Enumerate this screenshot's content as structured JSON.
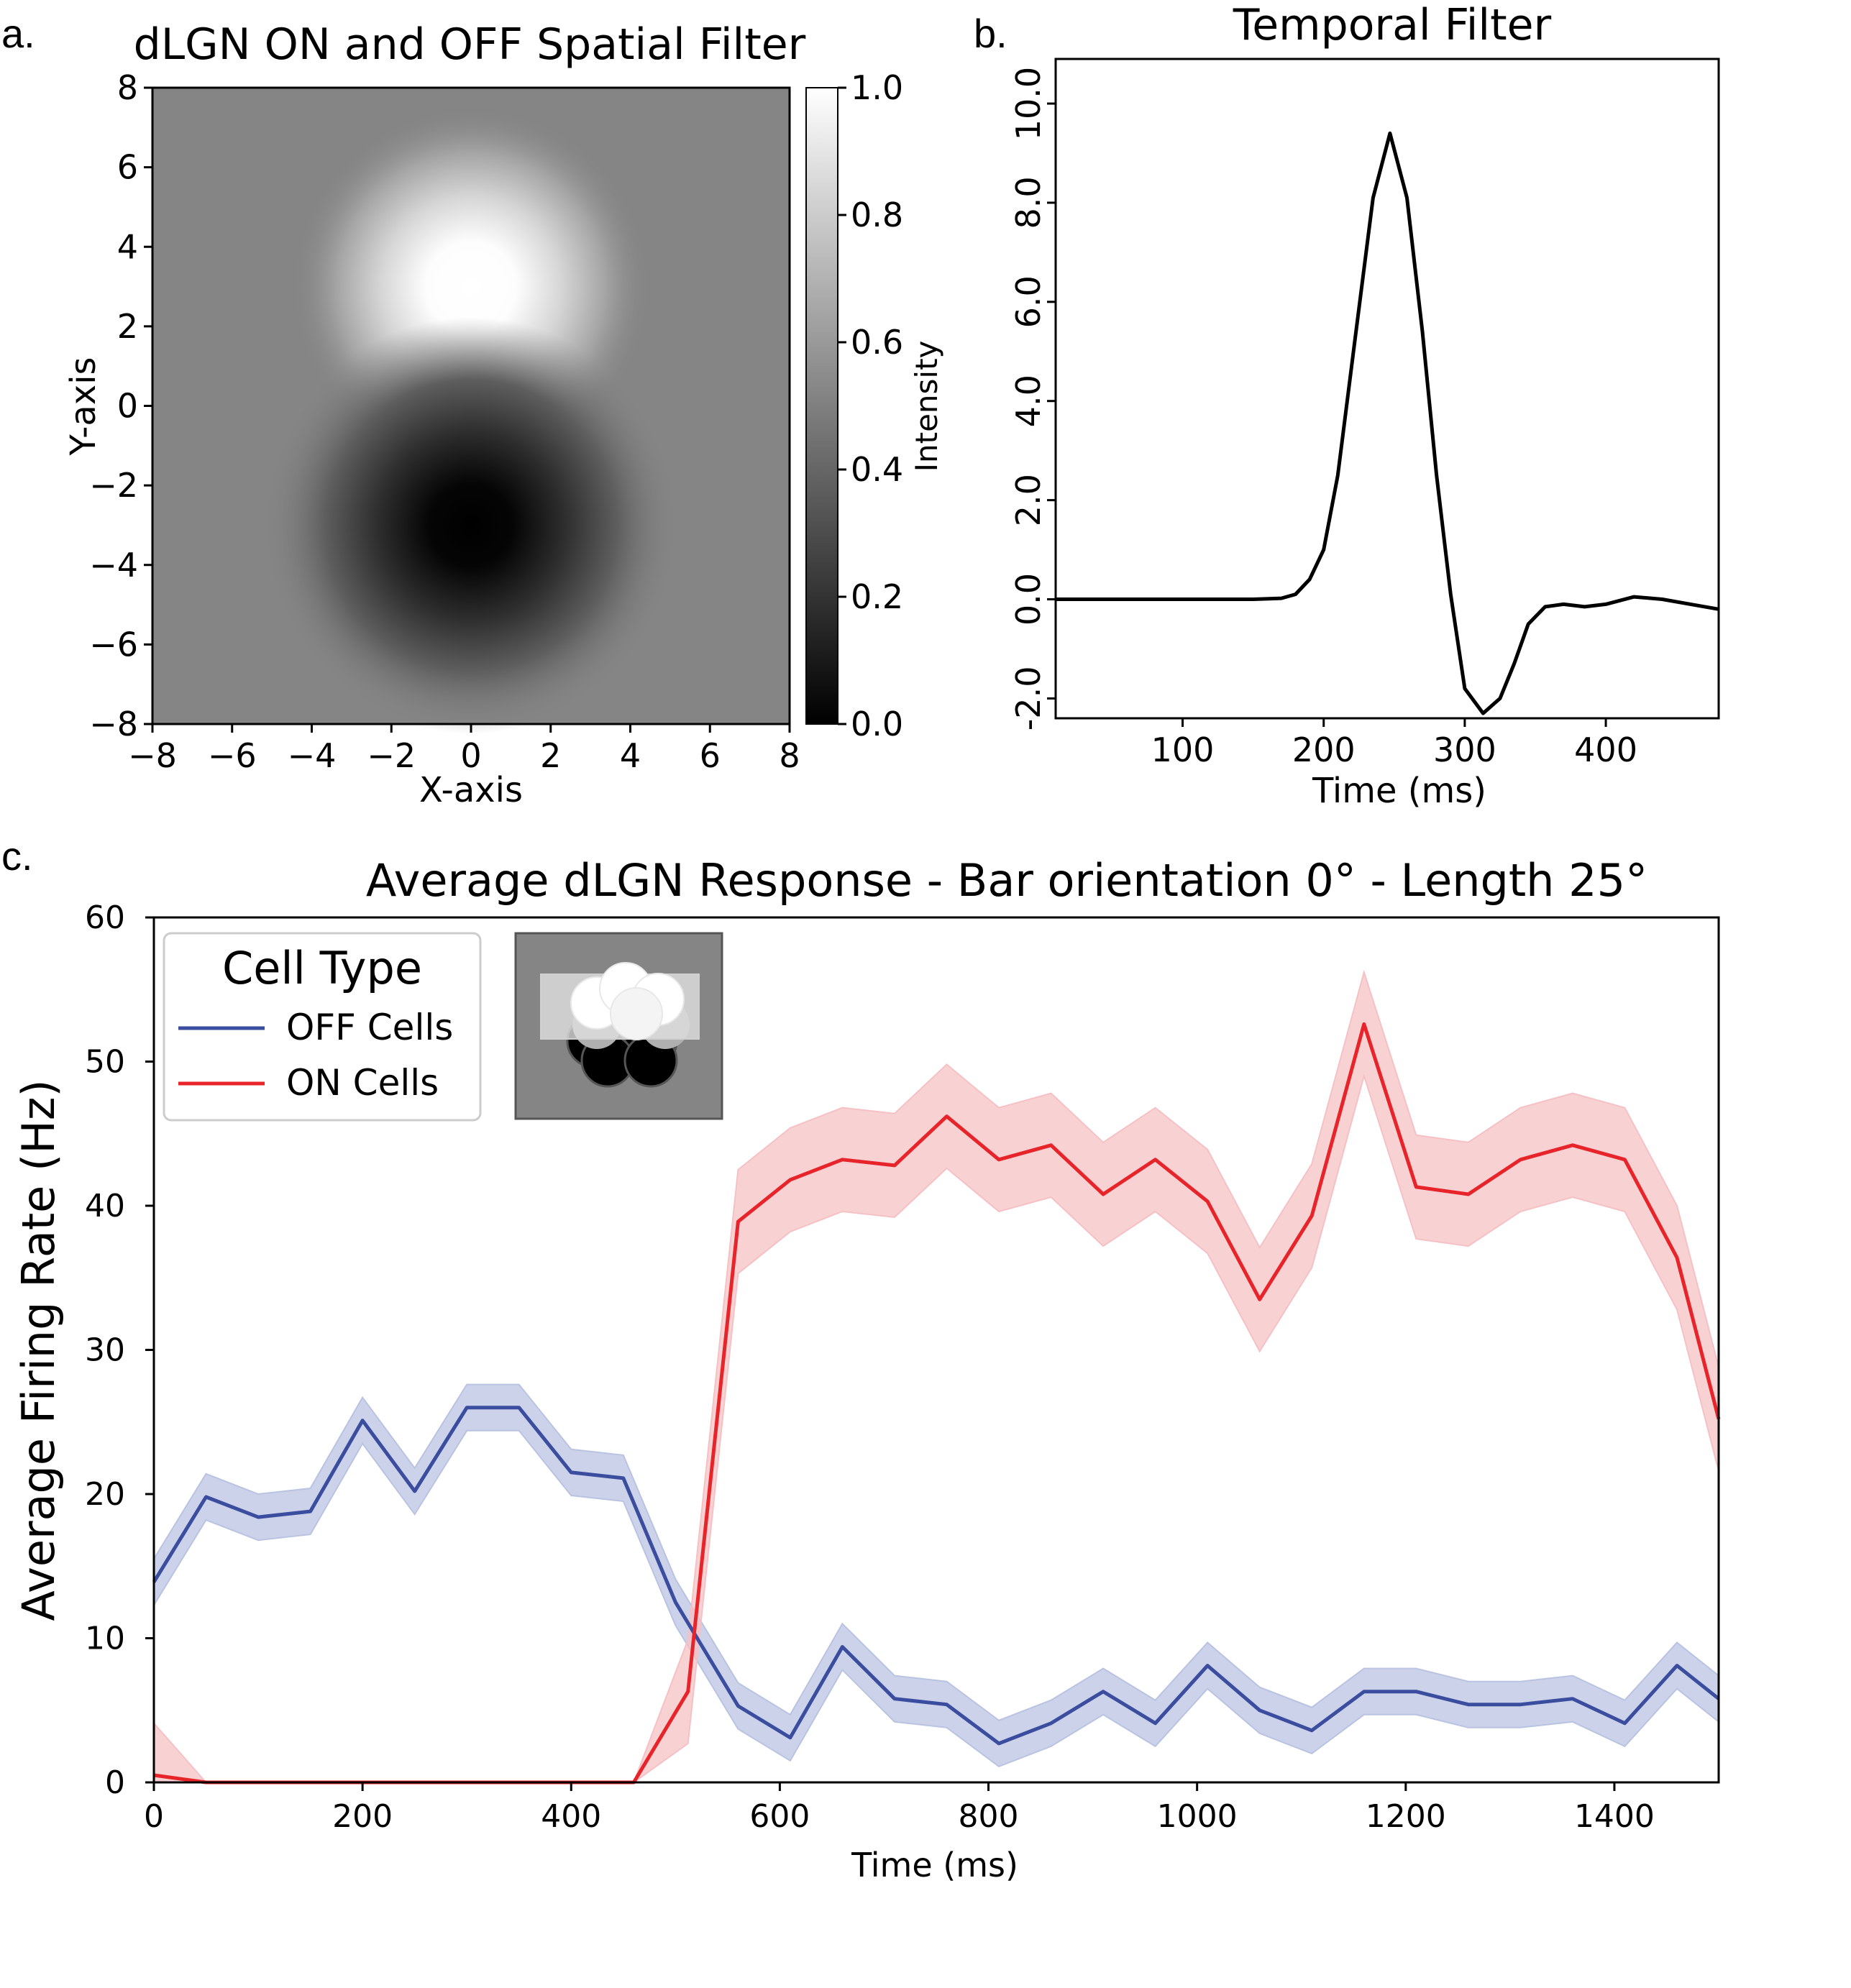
{
  "panels": {
    "a": {
      "letter": "a.",
      "chart_data": {
        "type": "heatmap",
        "title": "dLGN ON and OFF Spatial Filter",
        "xlabel": "X-axis",
        "ylabel": "Y-axis",
        "xlim": [
          -8,
          8
        ],
        "ylim": [
          -8,
          8
        ],
        "xticks": [
          "−8",
          "−6",
          "−4",
          "−2",
          "0",
          "2",
          "4",
          "6",
          "8"
        ],
        "yticks": [
          "−8",
          "−6",
          "−4",
          "−2",
          "0",
          "2",
          "4",
          "6",
          "8"
        ],
        "colorbar_label": "Intensity",
        "colorbar_ticks": [
          "0.0",
          "0.2",
          "0.4",
          "0.6",
          "0.8",
          "1.0"
        ],
        "colormap": "gray",
        "background_intensity": 0.5,
        "on_center": [
          0,
          3
        ],
        "off_center": [
          0,
          -3
        ],
        "grid": false
      }
    },
    "b": {
      "letter": "b.",
      "chart_data": {
        "type": "line",
        "title": "Temporal Filter",
        "xlabel": "Time (ms)",
        "ylabel": "",
        "xlim": [
          10,
          480
        ],
        "ylim": [
          -2.4,
          10.9
        ],
        "xticks": [
          "100",
          "200",
          "300",
          "400"
        ],
        "yticks": [
          "-2.0",
          "0.0",
          "2.0",
          "4.0",
          "6.0",
          "8.0",
          "10.0"
        ],
        "grid": false,
        "x": [
          10,
          150,
          170,
          180,
          190,
          200,
          210,
          222,
          235,
          247,
          259,
          270,
          280,
          290,
          300,
          313,
          325,
          335,
          345,
          357,
          370,
          385,
          400,
          420,
          440,
          460,
          480
        ],
        "y": [
          0.0,
          0.0,
          0.02,
          0.1,
          0.4,
          1.0,
          2.5,
          5.2,
          8.1,
          9.4,
          8.1,
          5.4,
          2.5,
          0.1,
          -1.8,
          -2.3,
          -2.0,
          -1.3,
          -0.5,
          -0.15,
          -0.1,
          -0.15,
          -0.1,
          0.05,
          0.0,
          -0.1,
          -0.2
        ],
        "color": "#000000"
      }
    },
    "c": {
      "letter": "c.",
      "chart_data": {
        "type": "line",
        "title": "Average dLGN Response - Bar orientation 0° - Length 25°",
        "xlabel": "Time (ms)",
        "ylabel": "Average Firing Rate (Hz)",
        "xlim": [
          0,
          1500
        ],
        "ylim": [
          0,
          60
        ],
        "xticks": [
          "0",
          "200",
          "400",
          "600",
          "800",
          "1000",
          "1200",
          "1400"
        ],
        "yticks": [
          "0",
          "10",
          "20",
          "30",
          "40",
          "50",
          "60"
        ],
        "grid": false,
        "legend": {
          "title": "Cell Type",
          "placement": "top-left"
        },
        "x": [
          0,
          50,
          100,
          150,
          200,
          250,
          300,
          350,
          400,
          450,
          500,
          550,
          600,
          650,
          700,
          750,
          800,
          850,
          900,
          950,
          1000,
          1050,
          1100,
          1150,
          1200,
          1250,
          1300,
          1350,
          1400,
          1450,
          1500
        ],
        "series": [
          {
            "name": "OFF Cells",
            "color": "#3a4d9e",
            "band_color": "#b9c3e2",
            "x": [
              0,
              50,
              100,
              150,
              200,
              250,
              300,
              350,
              400,
              450,
              500,
              560,
              610,
              660,
              710,
              760,
              810,
              860,
              910,
              960,
              1010,
              1060,
              1110,
              1160,
              1210,
              1260,
              1310,
              1360,
              1410,
              1460,
              1500
            ],
            "values": [
              13.9,
              19.8,
              18.4,
              18.8,
              25.1,
              20.2,
              26.0,
              26.0,
              21.5,
              21.1,
              12.5,
              5.3,
              3.1,
              9.4,
              5.8,
              5.4,
              2.7,
              4.1,
              6.3,
              4.1,
              8.1,
              5.0,
              3.6,
              6.3,
              6.3,
              5.4,
              5.4,
              5.8,
              4.1,
              8.1,
              5.8
            ],
            "band": 1.6
          },
          {
            "name": "ON Cells",
            "color": "#e8242b",
            "band_color": "#f6c1c4",
            "x": [
              0,
              50,
              100,
              150,
              200,
              250,
              300,
              350,
              400,
              460,
              512,
              560,
              610,
              660,
              710,
              760,
              810,
              860,
              910,
              960,
              1010,
              1060,
              1110,
              1160,
              1210,
              1260,
              1310,
              1360,
              1410,
              1460,
              1500
            ],
            "values": [
              0.5,
              0.0,
              0.0,
              0.0,
              0.0,
              0.0,
              0.0,
              0.0,
              0.0,
              0.0,
              6.3,
              38.9,
              41.8,
              43.2,
              42.8,
              46.2,
              43.2,
              44.2,
              40.8,
              43.2,
              40.3,
              33.5,
              39.3,
              52.6,
              41.3,
              40.8,
              43.2,
              44.2,
              43.2,
              36.4,
              25.2
            ],
            "band": 3.6
          }
        ],
        "inset": "bar stimulus over ON/OFF receptive fields"
      }
    }
  }
}
